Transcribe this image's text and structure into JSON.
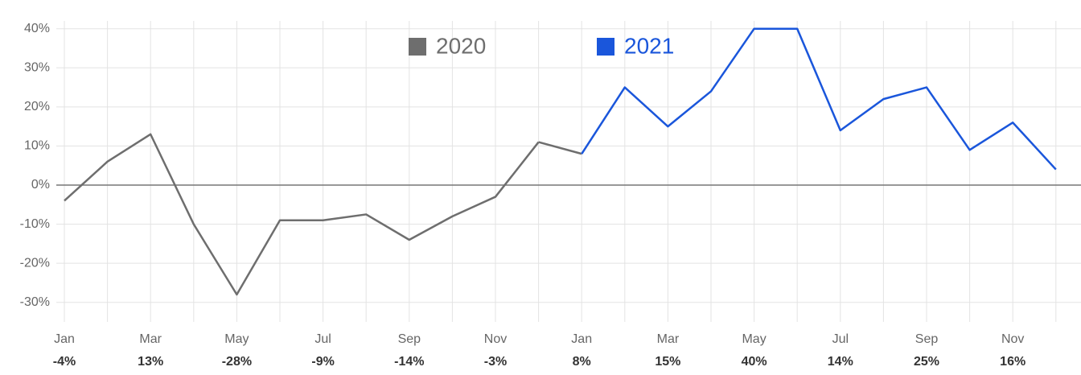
{
  "chart_data": {
    "type": "line",
    "categories": [
      "Jan",
      null,
      "Mar",
      null,
      "May",
      null,
      "Jul",
      null,
      "Sep",
      null,
      "Nov",
      null,
      "Jan",
      null,
      "Mar",
      null,
      "May",
      null,
      "Jul",
      null,
      "Sep",
      null,
      "Nov",
      null
    ],
    "series": [
      {
        "name": "2020",
        "color": "#6e6e6e",
        "values": [
          -4,
          6,
          13,
          -10,
          -28,
          -9,
          -9,
          -7.5,
          -14,
          -8,
          -3,
          11,
          null,
          null,
          null,
          null,
          null,
          null,
          null,
          null,
          null,
          null,
          null,
          null
        ],
        "value_labels": [
          "-4%",
          null,
          "13%",
          null,
          "-28%",
          null,
          "-9%",
          null,
          "-14%",
          null,
          "-3%",
          null,
          null,
          null,
          null,
          null,
          null,
          null,
          null,
          null,
          null,
          null,
          null,
          null
        ]
      },
      {
        "name": "2021",
        "color": "#1a56db",
        "values": [
          null,
          null,
          null,
          null,
          null,
          null,
          null,
          null,
          null,
          null,
          null,
          null,
          8,
          25,
          15,
          24,
          40,
          40,
          14,
          22,
          25,
          9,
          16,
          4
        ],
        "value_labels": [
          null,
          null,
          null,
          null,
          null,
          null,
          null,
          null,
          null,
          null,
          null,
          null,
          "8%",
          null,
          "15%",
          null,
          "40%",
          null,
          "14%",
          null,
          "25%",
          null,
          "16%",
          null
        ]
      }
    ],
    "ylim": [
      -35,
      42
    ],
    "yticks": [
      {
        "value": -30,
        "label": "-30%"
      },
      {
        "value": -20,
        "label": "-20%"
      },
      {
        "value": -10,
        "label": "-10%"
      },
      {
        "value": 0,
        "label": "0%"
      },
      {
        "value": 10,
        "label": "10%"
      },
      {
        "value": 20,
        "label": "20%"
      },
      {
        "value": 30,
        "label": "30%"
      },
      {
        "value": 40,
        "label": "40%"
      }
    ],
    "grid": true
  }
}
